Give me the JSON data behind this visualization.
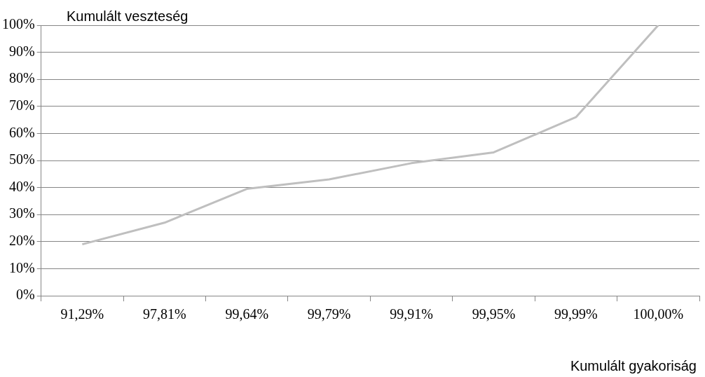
{
  "chart_data": {
    "type": "line",
    "ylabel": "Kumulált veszteség",
    "xlabel": "Kumulált gyakoriság",
    "categories": [
      "91,29%",
      "97,81%",
      "99,64%",
      "99,79%",
      "99,91%",
      "99,95%",
      "99,99%",
      "100,00%"
    ],
    "series": [
      {
        "color": "#bfbfbf",
        "values": [
          19,
          27,
          39.5,
          43,
          49,
          53,
          66,
          100
        ]
      }
    ],
    "ylim": [
      0,
      100
    ],
    "yticks": [
      {
        "value": 0,
        "label": "0%"
      },
      {
        "value": 10,
        "label": "10%"
      },
      {
        "value": 20,
        "label": "20%"
      },
      {
        "value": 30,
        "label": "30%"
      },
      {
        "value": 40,
        "label": "40%"
      },
      {
        "value": 50,
        "label": "50%"
      },
      {
        "value": 60,
        "label": "60%"
      },
      {
        "value": 70,
        "label": "70%"
      },
      {
        "value": 80,
        "label": "80%"
      },
      {
        "value": 90,
        "label": "90%"
      },
      {
        "value": 100,
        "label": "100%"
      }
    ],
    "grid": "y",
    "legend": false,
    "marker": "none",
    "line_style": "solid"
  }
}
